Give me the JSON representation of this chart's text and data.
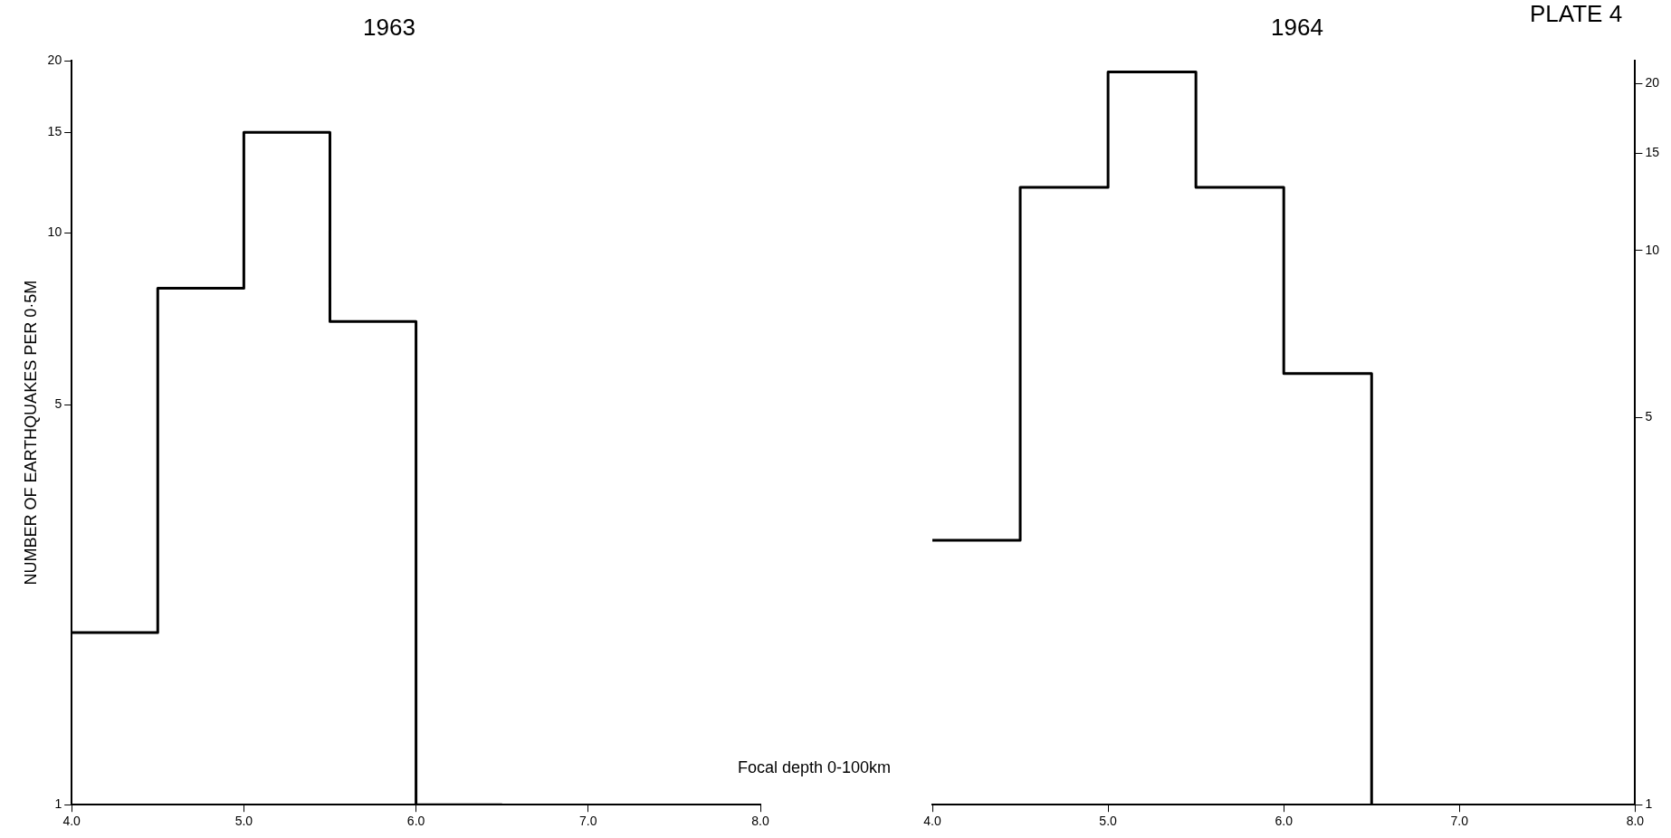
{
  "chart_data": [
    {
      "type": "step",
      "title": "1963",
      "ylabel": "NUMBER OF EARTHQUAKES PER 0·5M",
      "log": true,
      "grid": false,
      "legend": false,
      "marker": "none",
      "x": [
        4.0,
        4.5,
        5.0,
        5.5,
        6.0,
        6.5
      ],
      "values": [
        2,
        8,
        15,
        7,
        1,
        1
      ],
      "color": "#000000",
      "xlim": [
        4.0,
        8.0
      ],
      "xticks": [
        {
          "value": 4,
          "label": "4.0"
        },
        {
          "value": 5,
          "label": "5.0"
        },
        {
          "value": 6,
          "label": "6.0"
        },
        {
          "value": 7,
          "label": "7.0"
        },
        {
          "value": 8,
          "label": "8.0"
        }
      ],
      "ylim": [
        1,
        20
      ],
      "yticks": [
        1,
        5,
        10,
        15,
        20
      ],
      "annotations": [
        "Focal depth 0-100km"
      ]
    },
    {
      "type": "step",
      "title": "1964",
      "log": "y2",
      "grid": false,
      "legend": false,
      "marker": "none",
      "x": [
        4.0,
        4.5,
        5.0,
        5.5,
        6.0,
        6.5
      ],
      "series": [
        {
          "values": [
            3,
            13,
            21,
            13,
            6,
            1
          ],
          "color": "#000000",
          "axis": "y2"
        }
      ],
      "xlim": [
        4.0,
        8.0
      ],
      "xticks": [
        {
          "value": 4,
          "label": "4.0"
        },
        {
          "value": 5,
          "label": "5.0"
        },
        {
          "value": 6,
          "label": "6.0"
        },
        {
          "value": 7,
          "label": "7.0"
        },
        {
          "value": 8,
          "label": "8.0"
        }
      ],
      "y2lim": [
        1,
        22
      ],
      "y2ticks": [
        1,
        5,
        10,
        15,
        20
      ],
      "annotations": [
        "PLATE 4"
      ]
    }
  ]
}
